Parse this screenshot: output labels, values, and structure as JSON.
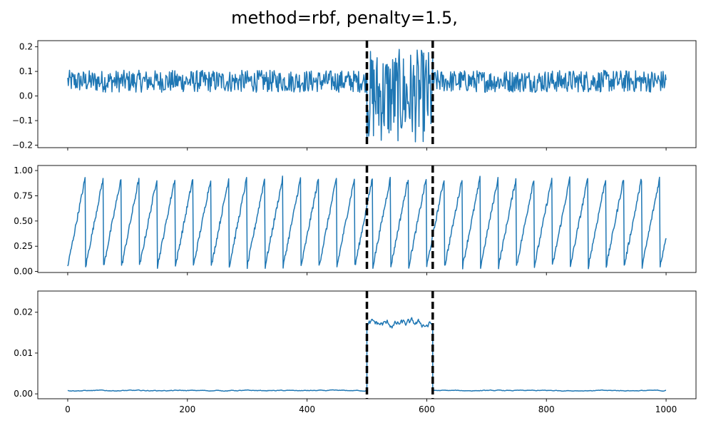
{
  "figure": {
    "title": "method=rbf, penalty=1.5,"
  },
  "chart_data": [
    {
      "type": "line",
      "panel": "top",
      "xlim": [
        -50,
        1050
      ],
      "ylim": [
        -0.21,
        0.225
      ],
      "xticks": [
        0,
        200,
        400,
        600,
        800,
        1000
      ],
      "yticks": [
        -0.2,
        -0.1,
        0.0,
        0.1,
        0.2
      ],
      "ytick_labels": [
        "−0.2",
        "−0.1",
        "0.0",
        "0.1",
        "0.2"
      ],
      "show_xtick_labels": false,
      "series_color": "#1f77b4",
      "changepoints": [
        500,
        610
      ],
      "segments": [
        {
          "x_start": 0,
          "x_end": 500,
          "mean": 0.06,
          "amplitude": 0.045,
          "pattern": "noise"
        },
        {
          "x_start": 500,
          "x_end": 610,
          "mean": 0.0,
          "amplitude": 0.19,
          "pattern": "noise"
        },
        {
          "x_start": 610,
          "x_end": 1000,
          "mean": 0.06,
          "amplitude": 0.045,
          "pattern": "noise"
        }
      ]
    },
    {
      "type": "line",
      "panel": "middle",
      "xlim": [
        -50,
        1050
      ],
      "ylim": [
        -0.01,
        1.05
      ],
      "xticks": [
        0,
        200,
        400,
        600,
        800,
        1000
      ],
      "yticks": [
        0.0,
        0.25,
        0.5,
        0.75,
        1.0
      ],
      "ytick_labels": [
        "0.00",
        "0.25",
        "0.50",
        "0.75",
        "1.00"
      ],
      "show_xtick_labels": false,
      "series_color": "#1f77b4",
      "changepoints": [
        500,
        610
      ],
      "segments": [
        {
          "x_start": 0,
          "x_end": 1000,
          "pattern": "sawtooth",
          "period": 30,
          "min": 0.05,
          "max": 0.95
        }
      ]
    },
    {
      "type": "line",
      "panel": "bottom",
      "xlim": [
        -50,
        1050
      ],
      "ylim": [
        -0.0012,
        0.0252
      ],
      "xticks": [
        0,
        200,
        400,
        600,
        800,
        1000
      ],
      "xtick_labels": [
        "0",
        "200",
        "400",
        "600",
        "800",
        "1000"
      ],
      "yticks": [
        0.0,
        0.01,
        0.02
      ],
      "ytick_labels": [
        "0.00",
        "0.01",
        "0.02"
      ],
      "show_xtick_labels": true,
      "series_color": "#1f77b4",
      "changepoints": [
        500,
        610
      ],
      "segments": [
        {
          "x_start": 0,
          "x_end": 500,
          "mean": 0.0008,
          "amplitude": 0.0004,
          "pattern": "smooth"
        },
        {
          "x_start": 500,
          "x_end": 610,
          "mean": 0.017,
          "amplitude": 0.004,
          "pattern": "smooth"
        },
        {
          "x_start": 610,
          "x_end": 1000,
          "mean": 0.0008,
          "amplitude": 0.0004,
          "pattern": "smooth"
        }
      ]
    }
  ]
}
